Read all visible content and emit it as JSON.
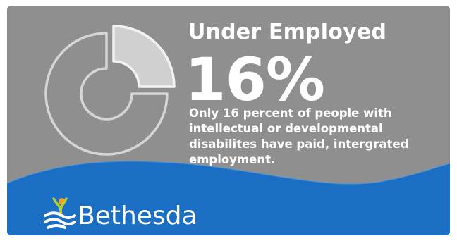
{
  "infographic": {
    "title": "Under Employed",
    "percent_label": "16%",
    "percent_value": 16,
    "description": "Only 16 percent of people with intellectual or developmental disabilites have paid, intergrated employment.",
    "brand": "Bethesda",
    "colors": {
      "background": "#8f8f8f",
      "wave": "#1a6fc4",
      "ring": "#d9d9d9",
      "text": "#ffffff",
      "logo_green": "#b8cf34",
      "logo_orange": "#f2a41c"
    }
  }
}
